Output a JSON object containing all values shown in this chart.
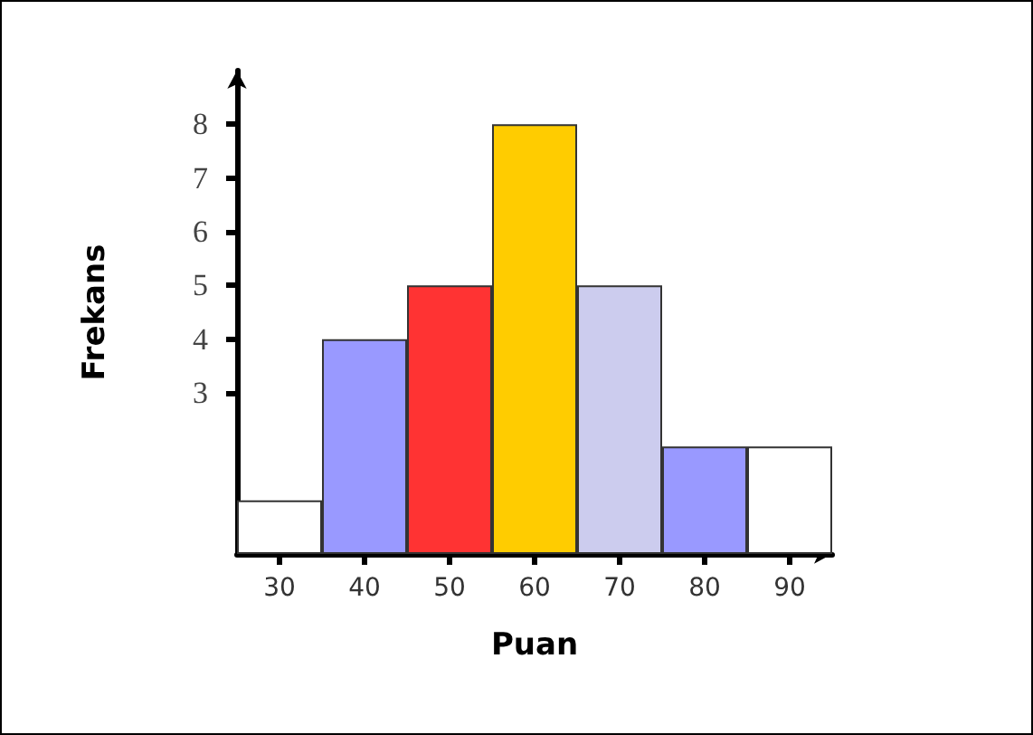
{
  "chart_data": {
    "type": "bar",
    "xlabel": "Puan",
    "ylabel": "Frekans",
    "categories": [
      "30",
      "40",
      "50",
      "60",
      "70",
      "80",
      "90"
    ],
    "values": [
      1,
      4,
      5,
      8,
      5,
      2,
      2
    ],
    "colors": [
      "#ffffff",
      "#9999ff",
      "#ff3333",
      "#ffcc00",
      "#ccccee",
      "#9999ff",
      "#ffffff"
    ],
    "ylim": [
      0,
      9
    ],
    "yticks": [
      3,
      4,
      5,
      6,
      7,
      8
    ],
    "grid": false
  }
}
